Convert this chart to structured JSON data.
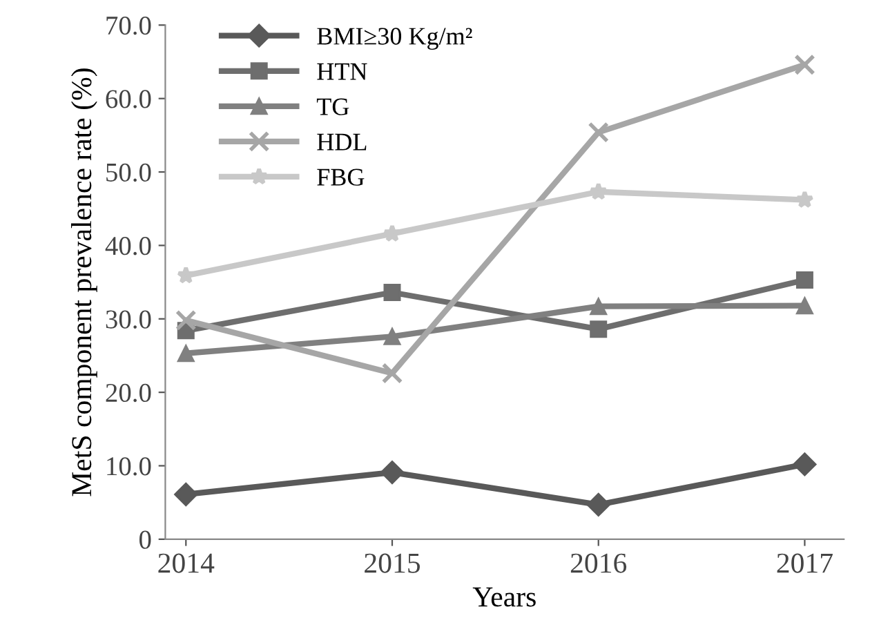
{
  "chart_data": {
    "type": "line",
    "xlabel": "Years",
    "ylabel": "MetS component prevalence rate (%)",
    "x": [
      2014,
      2015,
      2016,
      2017
    ],
    "series": [
      {
        "name": "BMI≥30 Kg/m²",
        "color": "#595959",
        "marker": "diamond",
        "values": [
          6.1,
          9.1,
          4.7,
          10.2
        ]
      },
      {
        "name": "HTN",
        "color": "#6e6e6e",
        "marker": "square",
        "values": [
          28.4,
          33.6,
          28.6,
          35.3
        ]
      },
      {
        "name": "TG",
        "color": "#808080",
        "marker": "triangle",
        "values": [
          25.3,
          27.6,
          31.7,
          31.8
        ]
      },
      {
        "name": "HDL",
        "color": "#a6a6a6",
        "marker": "cross",
        "values": [
          29.8,
          22.6,
          55.4,
          64.6
        ]
      },
      {
        "name": "FBG",
        "color": "#c8c8c8",
        "marker": "star",
        "values": [
          35.9,
          41.6,
          47.3,
          46.2
        ]
      }
    ],
    "xlim": [
      2013.9,
      2017.19
    ],
    "xticks": [
      2014,
      2015,
      2016,
      2017
    ],
    "ylim": [
      0,
      70
    ],
    "yticks": [
      0,
      {
        "value": 10,
        "label": "10.0"
      },
      {
        "value": 20,
        "label": "20.0"
      },
      {
        "value": 30,
        "label": "30.0"
      },
      {
        "value": 40,
        "label": "40.0"
      },
      {
        "value": 50,
        "label": "50.0"
      },
      {
        "value": 60,
        "label": "60.0"
      },
      {
        "value": 70,
        "label": "70.0"
      }
    ],
    "grid": false,
    "legend": "top left",
    "line_style": "solid"
  }
}
